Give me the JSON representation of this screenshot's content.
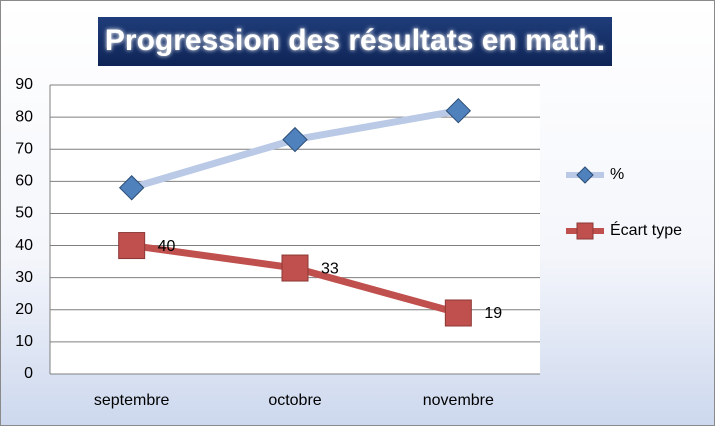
{
  "chart_data": {
    "type": "line",
    "title": "Progression des résultats en math.",
    "categories": [
      "septembre",
      "octobre",
      "novembre"
    ],
    "series": [
      {
        "name": "%",
        "color": "#4f81bd",
        "line_color": "#b9c9e6",
        "marker": "diamond",
        "values": [
          58,
          73,
          82
        ],
        "show_values": false
      },
      {
        "name": "Écart type",
        "color": "#c0504d",
        "line_color": "#c0504d",
        "marker": "square",
        "values": [
          40,
          33,
          19
        ],
        "show_values": true
      }
    ],
    "ylim": [
      0,
      90
    ],
    "yticks": [
      0,
      10,
      20,
      30,
      40,
      50,
      60,
      70,
      80,
      90
    ],
    "grid": true,
    "legend": "right"
  }
}
